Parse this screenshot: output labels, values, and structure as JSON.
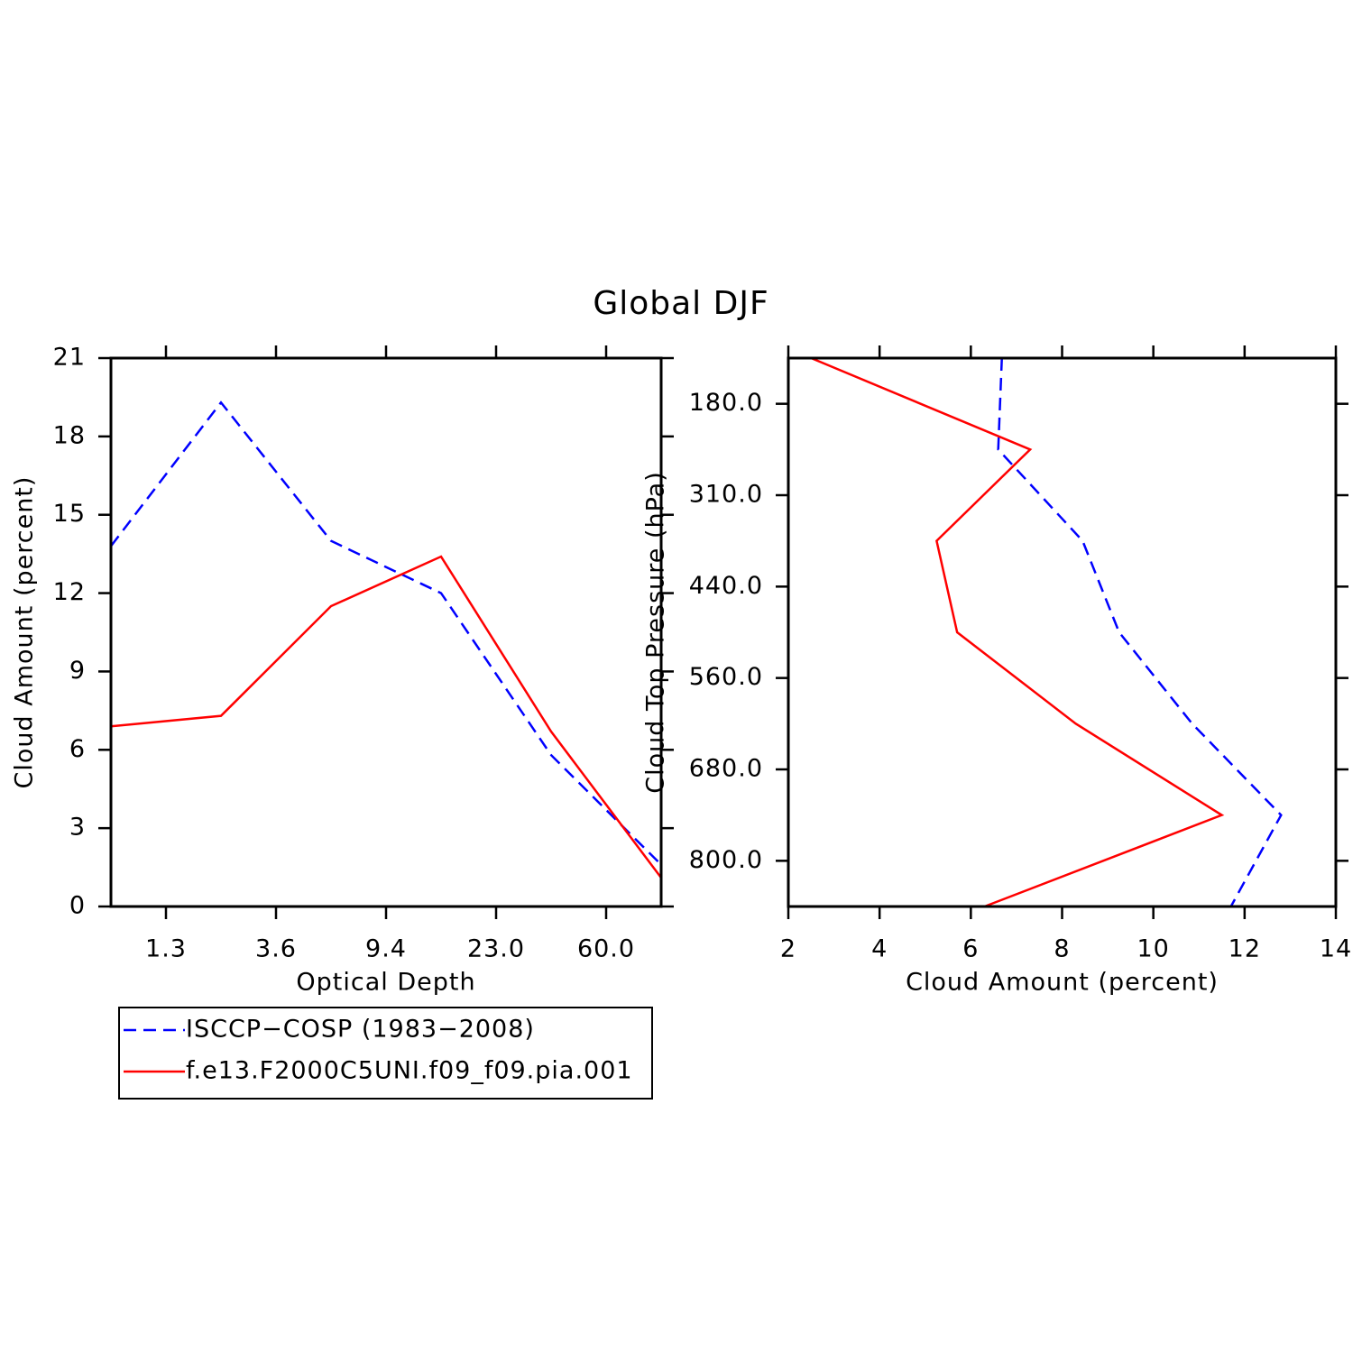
{
  "title": "Global DJF",
  "chart_data": [
    {
      "type": "line",
      "xlabel": "Optical Depth",
      "ylabel": "Cloud Amount (percent)",
      "x": [
        0,
        1,
        2,
        3,
        4,
        5
      ],
      "xlim": [
        0,
        5
      ],
      "xticks": [
        {
          "value": 0.5,
          "label": "1.3"
        },
        {
          "value": 1.5,
          "label": "3.6"
        },
        {
          "value": 2.5,
          "label": "9.4"
        },
        {
          "value": 3.5,
          "label": "23.0"
        },
        {
          "value": 4.5,
          "label": "60.0"
        }
      ],
      "ylim": [
        0,
        21
      ],
      "yticks": [
        0,
        3,
        6,
        9,
        12,
        15,
        18,
        21
      ],
      "series": [
        {
          "name": "ISCCP−COSP (1983−2008)",
          "color": "#0000ff",
          "linestyle": "dashed",
          "values": [
            13.8,
            19.3,
            14.0,
            12.0,
            5.8,
            1.6
          ]
        },
        {
          "name": "f.e13.F2000C5UNI.f09_f09.pia.001",
          "color": "#ff0000",
          "linestyle": "solid",
          "values": [
            6.9,
            7.3,
            11.5,
            13.4,
            6.7,
            1.1
          ]
        }
      ]
    },
    {
      "type": "profile",
      "xlabel": "Cloud Amount (percent)",
      "ylabel": "Cloud Top Pressure (hPa)",
      "xlim": [
        2,
        14
      ],
      "xticks": [
        2,
        4,
        6,
        8,
        10,
        12,
        14
      ],
      "y": [
        0,
        1,
        2,
        3,
        4,
        5,
        6
      ],
      "ylim": [
        0,
        6
      ],
      "y_reversed": true,
      "yticks": [
        {
          "value": 0.5,
          "label": "180.0"
        },
        {
          "value": 1.5,
          "label": "310.0"
        },
        {
          "value": 2.5,
          "label": "440.0"
        },
        {
          "value": 3.5,
          "label": "560.0"
        },
        {
          "value": 4.5,
          "label": "680.0"
        },
        {
          "value": 5.5,
          "label": "800.0"
        }
      ],
      "series": [
        {
          "color": "#0000ff",
          "linestyle": "dashed",
          "values": [
            6.68,
            6.6,
            8.45,
            9.25,
            10.85,
            12.8,
            11.7
          ]
        },
        {
          "color": "#ff0000",
          "linestyle": "solid",
          "values": [
            2.5,
            7.3,
            5.25,
            5.7,
            8.3,
            11.5,
            6.3
          ]
        }
      ]
    }
  ]
}
